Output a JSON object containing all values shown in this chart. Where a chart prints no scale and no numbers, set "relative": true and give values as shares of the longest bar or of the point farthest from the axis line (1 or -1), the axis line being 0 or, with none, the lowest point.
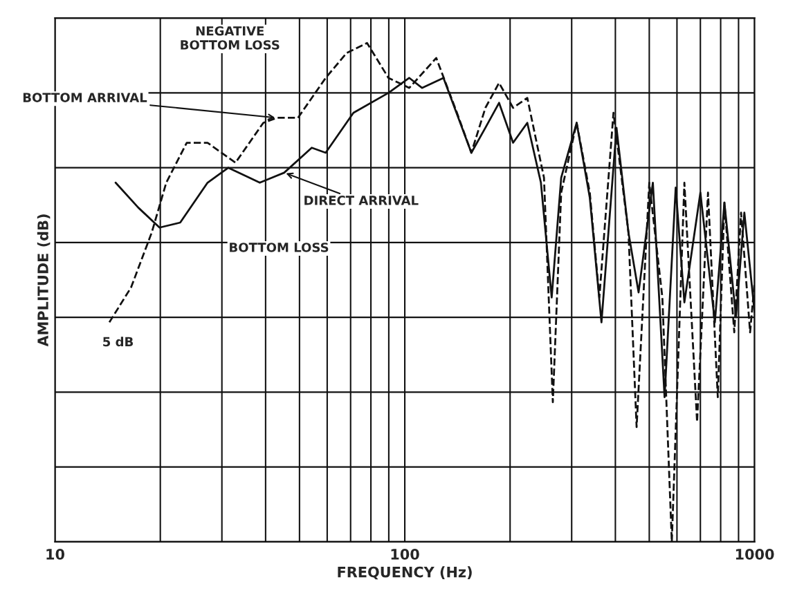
{
  "chart_data": {
    "type": "line",
    "relative": true,
    "xlabel": "FREQUENCY (Hz)",
    "ylabel": "AMPLITUDE (dB)",
    "log": "x",
    "grid": true,
    "tick_labels": "x",
    "xlim": [
      10,
      1000
    ],
    "xticks": [
      10,
      {
        "value": 20,
        "label": null
      },
      {
        "value": 30,
        "label": null
      },
      {
        "value": 40,
        "label": null
      },
      {
        "value": 50,
        "label": null
      },
      {
        "value": 60,
        "label": null
      },
      {
        "value": 70,
        "label": null
      },
      {
        "value": 80,
        "label": null
      },
      {
        "value": 90,
        "label": null
      },
      100,
      {
        "value": 200,
        "label": null
      },
      {
        "value": 300,
        "label": null
      },
      {
        "value": 400,
        "label": null
      },
      {
        "value": 500,
        "label": null
      },
      {
        "value": 600,
        "label": null
      },
      {
        "value": 700,
        "label": null
      },
      {
        "value": 800,
        "label": null
      },
      {
        "value": 900,
        "label": null
      },
      1000
    ],
    "series": [
      {
        "color": "#111111",
        "line_style": "dashed",
        "x": [
          14.3,
          16.5,
          18.9,
          20.8,
          23.8,
          27.3,
          32.8,
          39.4,
          43.1,
          49.5,
          59.4,
          68.2,
          78,
          89.8,
          103,
          123,
          141,
          155,
          170,
          186,
          204,
          224,
          250,
          265,
          280,
          310,
          338,
          360,
          395,
          436,
          460,
          500,
          545,
          580,
          630,
          685,
          736,
          785,
          820,
          875,
          915,
          971,
          1000
        ],
        "values": [
          0.44,
          0.51,
          0.62,
          0.72,
          0.8,
          0.8,
          0.76,
          0.84,
          0.85,
          0.85,
          0.93,
          0.98,
          1.0,
          0.93,
          0.91,
          0.97,
          0.86,
          0.78,
          0.87,
          0.92,
          0.87,
          0.89,
          0.73,
          0.28,
          0.7,
          0.84,
          0.7,
          0.49,
          0.86,
          0.62,
          0.23,
          0.72,
          0.49,
          0.0,
          0.72,
          0.24,
          0.7,
          0.29,
          0.68,
          0.42,
          0.66,
          0.42,
          0.52
        ]
      },
      {
        "color": "#111111",
        "line_style": "solid",
        "x": [
          14.9,
          17.3,
          19.9,
          22.8,
          27.3,
          31.3,
          38.5,
          45.2,
          54.2,
          59.4,
          71.3,
          89.8,
          103,
          112,
          129,
          155,
          170,
          186,
          204,
          224,
          245,
          263,
          280,
          310,
          338,
          365,
          403,
          436,
          466,
          512,
          553,
          595,
          630,
          700,
          770,
          820,
          885,
          935,
          1000
        ],
        "values": [
          0.72,
          0.67,
          0.63,
          0.64,
          0.72,
          0.75,
          0.72,
          0.74,
          0.79,
          0.78,
          0.86,
          0.9,
          0.93,
          0.91,
          0.93,
          0.78,
          0.83,
          0.88,
          0.8,
          0.84,
          0.72,
          0.49,
          0.73,
          0.84,
          0.69,
          0.44,
          0.83,
          0.62,
          0.5,
          0.72,
          0.29,
          0.71,
          0.48,
          0.7,
          0.44,
          0.68,
          0.45,
          0.66,
          0.46
        ]
      }
    ],
    "annotations": [
      "NEGATIVE\nBOTTOM LOSS",
      {
        "text": "BOTTOM ARRIVAL",
        "x": 43.1,
        "y": 0.85
      },
      {
        "text": "DIRECT ARRIVAL",
        "x": 45.2,
        "y": 0.74
      },
      "BOTTOM LOSS",
      "5 dB"
    ]
  }
}
